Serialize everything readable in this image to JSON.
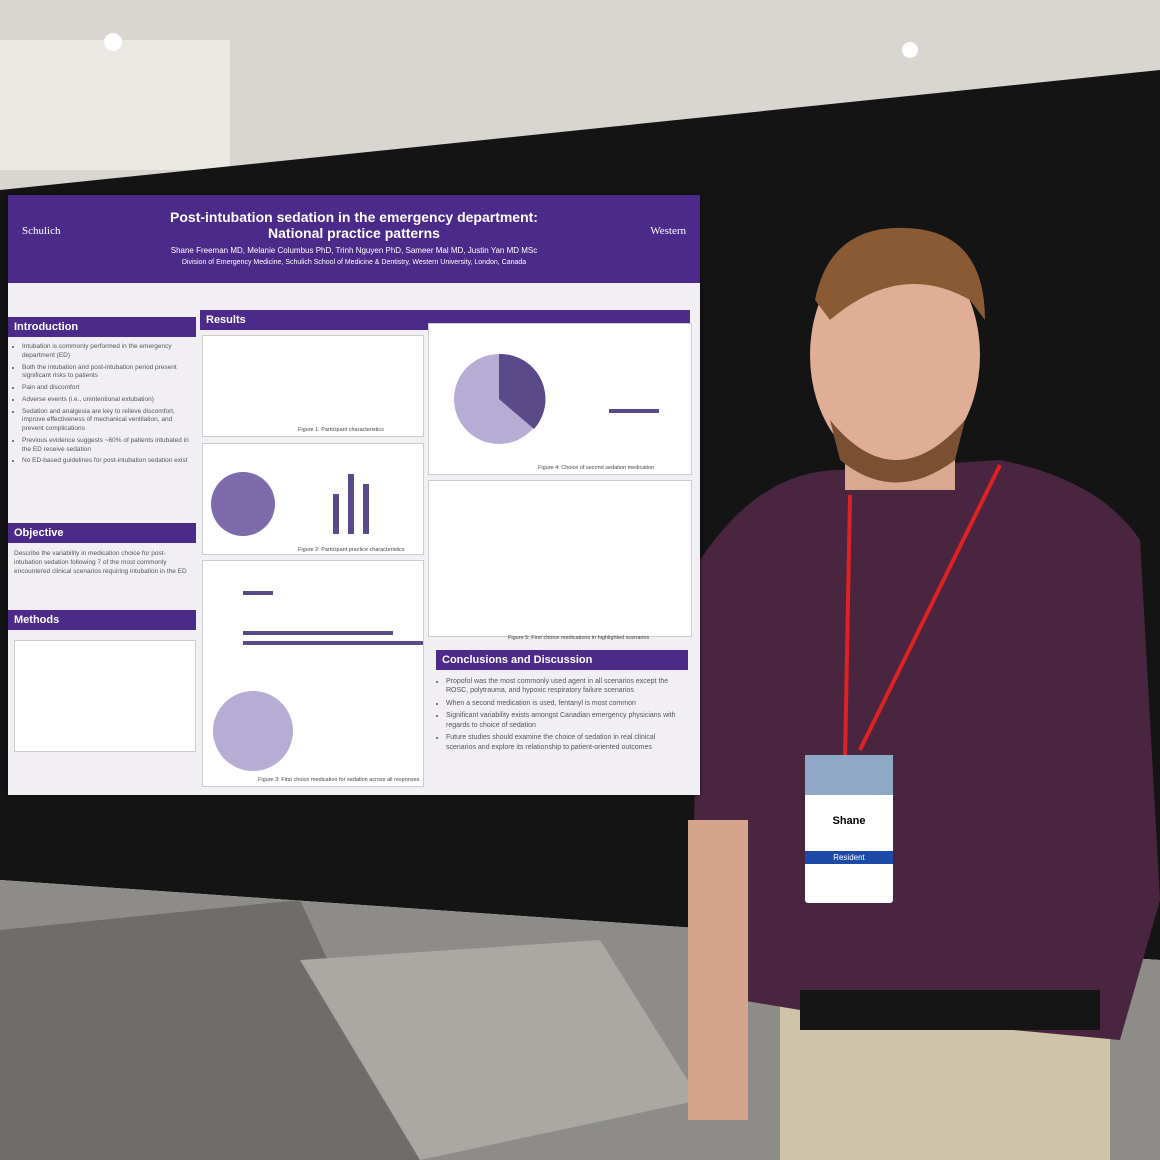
{
  "poster": {
    "title_line1": "Post-intubation sedation in the emergency department:",
    "title_line2": "National practice patterns",
    "authors": "Shane Freeman MD, Melanie Columbus PhD, Trinh Nguyen PhD, Sameer Mal MD, Justin Yan MD MSc",
    "affiliation": "Division of Emergency Medicine, Schulich School of Medicine & Dentistry, Western University, London, Canada",
    "logo_left": "Schulich",
    "logo_right": "Western",
    "introduction": {
      "heading": "Introduction",
      "bullets": [
        "Intubation is commonly performed in the emergency department (ED)",
        "Both the intubation and post-intubation period present significant risks to patients",
        "Pain and discomfort",
        "Adverse events (i.e., unintentional extubation)",
        "Sedation and analgesia are key to relieve discomfort, improve effectiveness of mechanical ventilation, and prevent complications",
        "Previous evidence suggests ~60% of patients intubated in the ED receive sedation",
        "No ED-based guidelines for post-intubation sedation exist"
      ]
    },
    "objective": {
      "heading": "Objective",
      "text": "Describe the variability in medication choice for post-intubation sedation following 7 of the most commonly encountered clinical scenarios requiring intubation in the ED"
    },
    "methods": {
      "heading": "Methods"
    },
    "results": {
      "heading": "Results",
      "captions": [
        "Figure 1: Participant characteristics",
        "Figure 2: Participant practice characteristics",
        "Figure 3: First choice medication for sedation across all responses",
        "Figure 4: Choice of second sedation medication",
        "Figure 5: First choice medications in highlighted scenarios"
      ]
    },
    "conclusions": {
      "heading": "Conclusions and Discussion",
      "bullets": [
        "Propofol was the most commonly used agent in all scenarios except the ROSC, polytrauma, and hypoxic respiratory failure scenarios",
        "When a second medication is used, fentanyl is most common",
        "Significant variability exists amongst Canadian emergency physicians with regards to choice of sedation",
        "Future studies should examine the choice of sedation in real clinical scenarios and explore its relationship to patient-oriented outcomes"
      ]
    }
  },
  "badge": {
    "name": "Shane",
    "role": "Resident"
  }
}
